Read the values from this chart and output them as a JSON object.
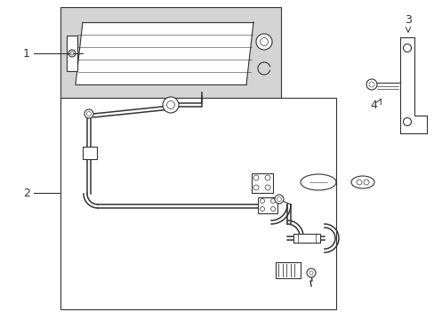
{
  "bg_color": "#ffffff",
  "line_color": "#333333",
  "gray_fill": "#d4d4d4",
  "lw_main": 0.8,
  "lw_pipe": 1.1
}
